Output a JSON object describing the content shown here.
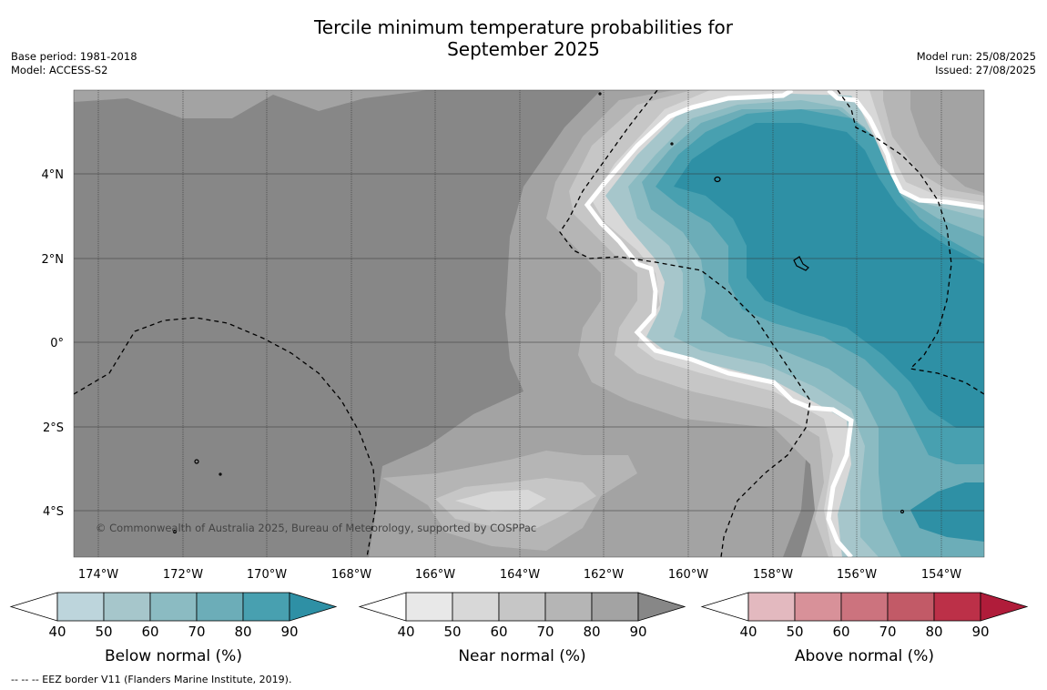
{
  "title_line1": "Tercile minimum temperature probabilities for",
  "title_line2": "September 2025",
  "base_period": "Base period: 1981-2018",
  "model": "Model: ACCESS-S2",
  "model_run": "Model run: 25/08/2025",
  "issued": "Issued: 27/08/2025",
  "copyright": "© Commonwealth of Australia 2025, Bureau of Meteorology, supported by COSPPac",
  "footnote": "--  --  -- EEZ border V11 (Flanders Marine Institute, 2019).",
  "map": {
    "lon_labels": [
      "174°W",
      "172°W",
      "170°W",
      "168°W",
      "166°W",
      "164°W",
      "162°W",
      "160°W",
      "158°W",
      "156°W",
      "154°W"
    ],
    "lat_labels": [
      "4°N",
      "2°N",
      "0°",
      "2°S",
      "4°S"
    ],
    "lon_range": [
      -174.6,
      -152.9
    ],
    "lat_range": [
      -5.2,
      5.8
    ],
    "colors": {
      "land_gray": "#878787",
      "gray_80": "#a3a3a3",
      "gray_70": "#b5b5b5",
      "gray_60": "#c6c6c6",
      "gray_50": "#d8d8d8",
      "teal_50": "#a6c6cb",
      "teal_60": "#8bbbc2",
      "teal_70": "#6cadb8",
      "teal_80": "#48a0b0",
      "teal_90": "#2e90a5"
    }
  },
  "colorbars": [
    {
      "label": "Below normal (%)",
      "ticks": [
        "40",
        "50",
        "60",
        "70",
        "80",
        "90"
      ],
      "colors": [
        "#bdd5dc",
        "#a6c6cb",
        "#8bbbc2",
        "#6cadb8",
        "#48a0b0",
        "#2e90a5"
      ]
    },
    {
      "label": "Near normal (%)",
      "ticks": [
        "40",
        "50",
        "60",
        "70",
        "80",
        "90"
      ],
      "colors": [
        "#e8e8e8",
        "#d8d8d8",
        "#c6c6c6",
        "#b5b5b5",
        "#a3a3a3",
        "#878787"
      ]
    },
    {
      "label": "Above normal (%)",
      "ticks": [
        "40",
        "50",
        "60",
        "70",
        "80",
        "90"
      ],
      "colors": [
        "#e3b9bf",
        "#d89199",
        "#cc737e",
        "#c25a67",
        "#bc3048",
        "#b01c3a"
      ]
    }
  ]
}
